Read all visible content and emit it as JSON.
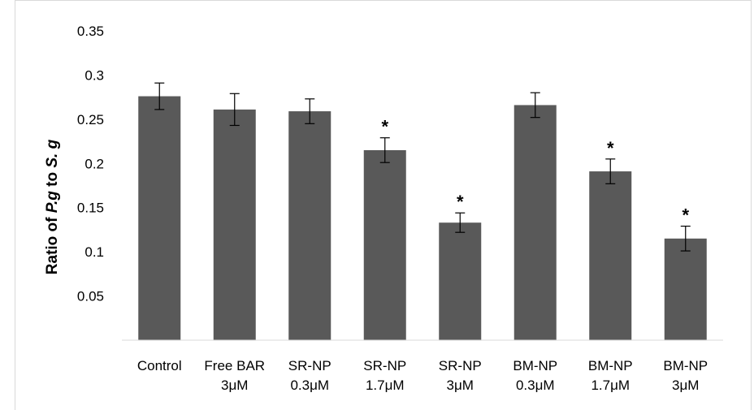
{
  "chart_data": {
    "type": "bar",
    "title": "",
    "xlabel": "",
    "ylabel": {
      "prefix": "Ratio of ",
      "italic1": "P.g",
      "middle": " to ",
      "italic2": "S. g"
    },
    "ylim": [
      0,
      0.35
    ],
    "yticks": [
      "0.35",
      "0.3",
      "0.25",
      "0.2",
      "0.15",
      "0.1",
      "0.05"
    ],
    "ytick_values": [
      0.35,
      0.3,
      0.25,
      0.2,
      0.15,
      0.1,
      0.05
    ],
    "grid": false,
    "legend": "none",
    "bar_color": "#595959",
    "categories": [
      [
        "Control"
      ],
      [
        "Free BAR",
        "3μM"
      ],
      [
        "SR-NP",
        "0.3μM"
      ],
      [
        "SR-NP",
        "1.7μM"
      ],
      [
        "SR-NP",
        "3μM"
      ],
      [
        "BM-NP",
        "0.3μM"
      ],
      [
        "BM-NP",
        "1.7μM"
      ],
      [
        "BM-NP",
        "3μM"
      ]
    ],
    "values": [
      0.276,
      0.261,
      0.259,
      0.215,
      0.133,
      0.266,
      0.191,
      0.115
    ],
    "errors": [
      0.015,
      0.018,
      0.014,
      0.014,
      0.011,
      0.014,
      0.014,
      0.014
    ],
    "annotations": [
      "",
      "",
      "",
      "*",
      "*",
      "",
      "*",
      "*"
    ]
  }
}
